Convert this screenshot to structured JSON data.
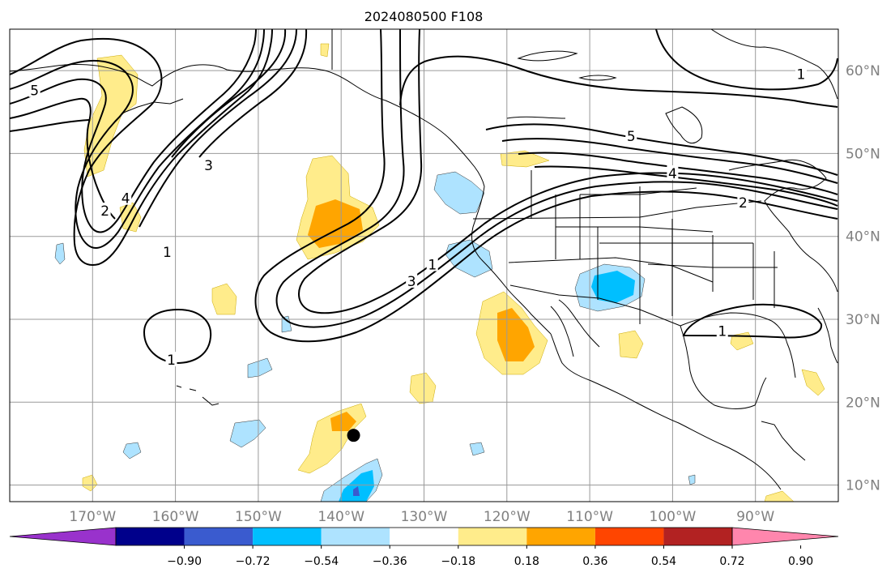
{
  "title": "2024080500 F108",
  "map": {
    "lon_range": [
      -180,
      -80
    ],
    "lat_range": [
      8,
      65
    ],
    "grid": true,
    "lon_ticks": [
      {
        "value": -170,
        "label": "170°W"
      },
      {
        "value": -160,
        "label": "160°W"
      },
      {
        "value": -150,
        "label": "150°W"
      },
      {
        "value": -140,
        "label": "140°W"
      },
      {
        "value": -130,
        "label": "130°W"
      },
      {
        "value": -120,
        "label": "120°W"
      },
      {
        "value": -110,
        "label": "110°W"
      },
      {
        "value": -100,
        "label": "100°W"
      },
      {
        "value": -90,
        "label": "90°W"
      }
    ],
    "lat_ticks": [
      {
        "value": 10,
        "label": "10°N"
      },
      {
        "value": 20,
        "label": "20°N"
      },
      {
        "value": 30,
        "label": "30°N"
      },
      {
        "value": 40,
        "label": "40°N"
      },
      {
        "value": 50,
        "label": "50°N"
      },
      {
        "value": 60,
        "label": "60°N"
      }
    ],
    "marker": {
      "lon": -138.5,
      "lat": 16.0,
      "color": "#000000"
    }
  },
  "contour_labels": [
    {
      "text": "1",
      "lon": -160.5,
      "lat": 25.0
    },
    {
      "text": "1",
      "lon": -161.0,
      "lat": 38.0
    },
    {
      "text": "1",
      "lon": -129.0,
      "lat": 36.5
    },
    {
      "text": "1",
      "lon": -94.0,
      "lat": 28.5
    },
    {
      "text": "1",
      "lon": -84.5,
      "lat": 59.5
    },
    {
      "text": "2",
      "lon": -168.5,
      "lat": 43.0
    },
    {
      "text": "2",
      "lon": -91.5,
      "lat": 44.0
    },
    {
      "text": "3",
      "lon": -156.0,
      "lat": 48.5
    },
    {
      "text": "3",
      "lon": -131.5,
      "lat": 34.5
    },
    {
      "text": "4",
      "lon": -166.0,
      "lat": 44.5
    },
    {
      "text": "4",
      "lon": -100.0,
      "lat": 47.5
    },
    {
      "text": "5",
      "lon": -105.0,
      "lat": 52.0
    },
    {
      "text": "5",
      "lon": -177.0,
      "lat": 57.5
    }
  ],
  "colorbar": {
    "colors": [
      "#9932cc",
      "#00008b",
      "#3a5bcf",
      "#00bfff",
      "#aee3ff",
      "#ffffff",
      "#ffec8b",
      "#ffa500",
      "#ff4500",
      "#b22222",
      "#ff86ad"
    ],
    "tick_labels": [
      "−0.90",
      "−0.72",
      "−0.54",
      "−0.36",
      "−0.18",
      "0.18",
      "0.36",
      "0.54",
      "0.72",
      "0.90"
    ]
  }
}
